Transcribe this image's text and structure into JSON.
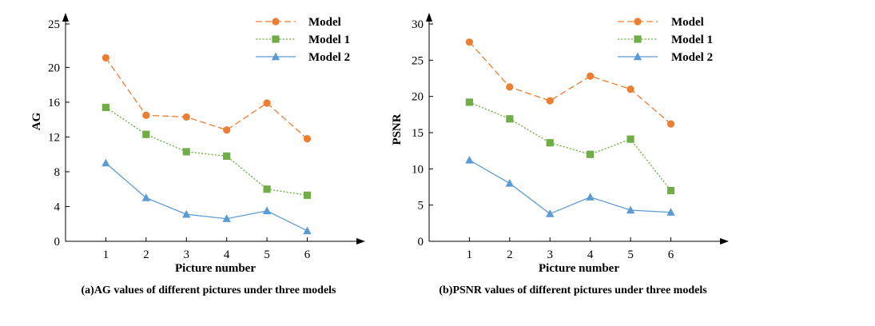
{
  "chart_data": [
    {
      "type": "line",
      "caption": "(a)AG values of different pictures under three models",
      "xlabel": "Picture number",
      "ylabel": "AG",
      "x": [
        1,
        2,
        3,
        4,
        5,
        6
      ],
      "xticks": [
        "1",
        "2",
        "3",
        "4",
        "5",
        "6"
      ],
      "xlim": [
        0,
        7.2
      ],
      "ylim": [
        0,
        25
      ],
      "yticks": [
        0,
        4,
        8,
        12,
        16,
        20,
        25
      ],
      "grid": false,
      "legend_position": "top-right",
      "series": [
        {
          "name": "Model",
          "color": "#ED7D31",
          "marker": "circle",
          "line": "dashed",
          "values": [
            21.1,
            14.5,
            14.3,
            12.8,
            15.9,
            11.8
          ]
        },
        {
          "name": "Model 1",
          "color": "#70AD47",
          "marker": "square",
          "line": "dotted",
          "values": [
            15.4,
            12.3,
            10.3,
            9.8,
            6.0,
            5.3
          ]
        },
        {
          "name": "Model 2",
          "color": "#5B9BD5",
          "marker": "triangle",
          "line": "solid",
          "values": [
            9.0,
            5.0,
            3.1,
            2.6,
            3.5,
            1.2
          ]
        }
      ]
    },
    {
      "type": "line",
      "caption": "(b)PSNR values of different pictures under three models",
      "xlabel": "Picture number",
      "ylabel": "PSNR",
      "x": [
        1,
        2,
        3,
        4,
        5,
        6
      ],
      "xticks": [
        "1",
        "2",
        "3",
        "4",
        "5",
        "6"
      ],
      "xlim": [
        0,
        7.2
      ],
      "ylim": [
        0,
        30
      ],
      "yticks": [
        0,
        5,
        10,
        15,
        20,
        25,
        30
      ],
      "grid": false,
      "legend_position": "top-right",
      "series": [
        {
          "name": "Model",
          "color": "#ED7D31",
          "marker": "circle",
          "line": "dashed",
          "values": [
            27.5,
            21.3,
            19.4,
            22.8,
            21.0,
            16.2
          ]
        },
        {
          "name": "Model 1",
          "color": "#70AD47",
          "marker": "square",
          "line": "dotted",
          "values": [
            19.2,
            16.9,
            13.6,
            12.0,
            14.1,
            7.0
          ]
        },
        {
          "name": "Model 2",
          "color": "#5B9BD5",
          "marker": "triangle",
          "line": "solid",
          "values": [
            11.2,
            8.0,
            3.8,
            6.1,
            4.3,
            4.0
          ]
        }
      ]
    }
  ]
}
